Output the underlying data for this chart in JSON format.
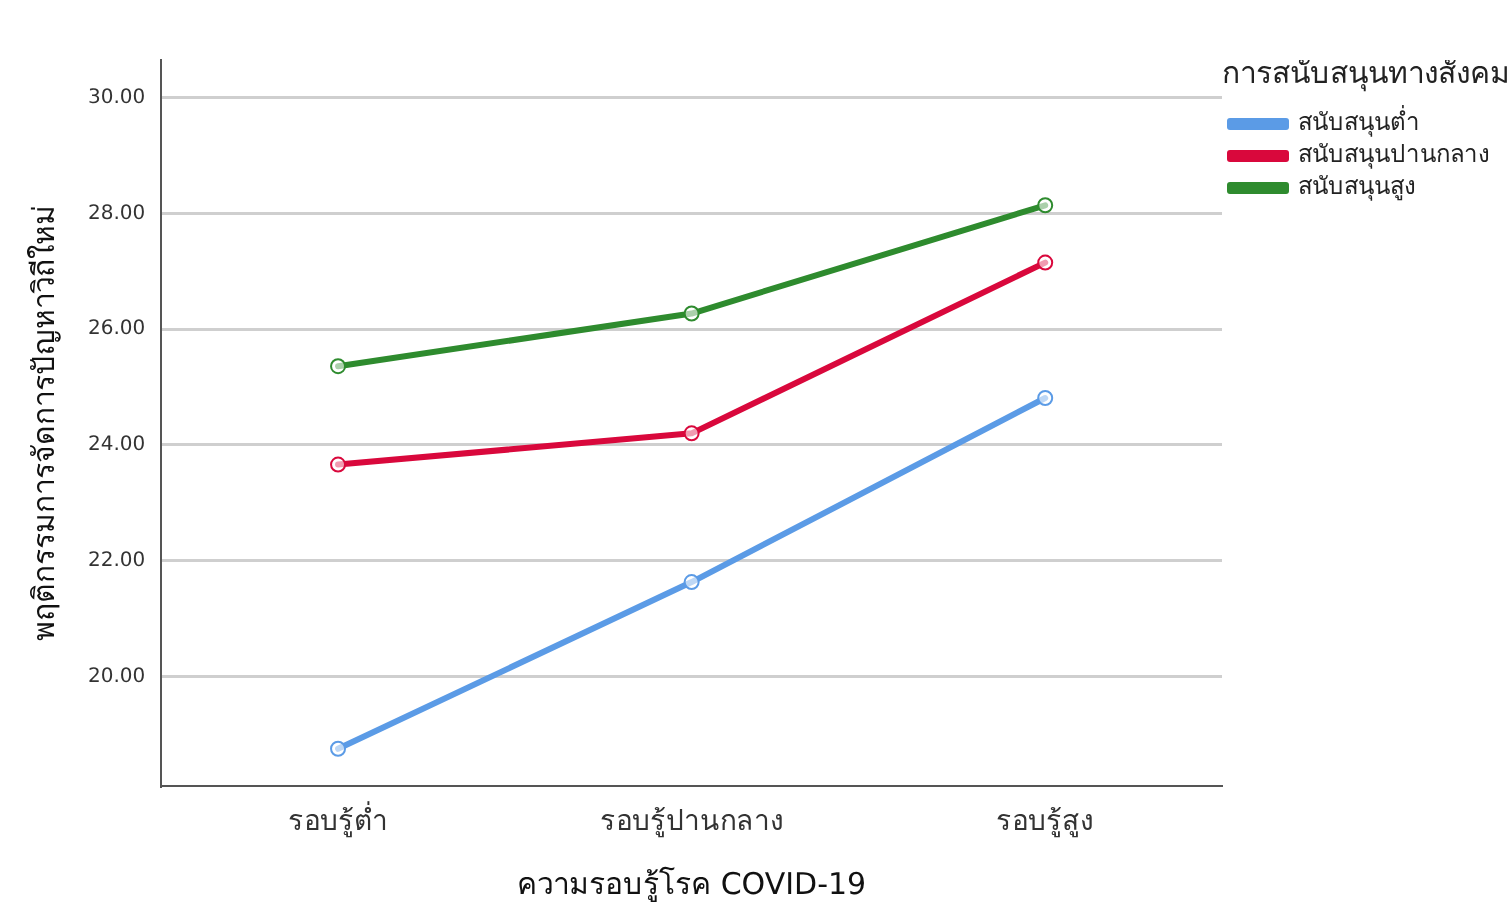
{
  "chart_data": {
    "type": "line",
    "xlabel": "ความรอบรู้โรค COVID-19",
    "ylabel": "พฤติกรรมการจัดการปัญหาวิถีใหม่",
    "legend_title": "การสนับสนุนทางสังคม",
    "categories": [
      "รอบรู้ต่ำ",
      "รอบรู้ปานกลาง",
      "รอบรู้สูง"
    ],
    "series": [
      {
        "name": "สนับสนุนต่ำ",
        "color": "#5b9be6",
        "values": [
          18.75,
          21.63,
          24.81
        ]
      },
      {
        "name": "สนับสนุนปานกลาง",
        "color": "#d9083c",
        "values": [
          23.66,
          24.2,
          27.15
        ]
      },
      {
        "name": "สนับสนุนสูง",
        "color": "#2e8b2e",
        "values": [
          25.36,
          26.27,
          28.14
        ]
      }
    ],
    "ylim": [
      18.1,
      30.65
    ],
    "yticks": [
      {
        "value": 20,
        "label": "20.00"
      },
      {
        "value": 22,
        "label": "22.00"
      },
      {
        "value": 24,
        "label": "24.00"
      },
      {
        "value": 26,
        "label": "26.00"
      },
      {
        "value": 28,
        "label": "28.00"
      },
      {
        "value": 30,
        "label": "30.00"
      }
    ],
    "grid": "y",
    "legend": "top right",
    "marker": "circle",
    "line_style": "solid"
  }
}
